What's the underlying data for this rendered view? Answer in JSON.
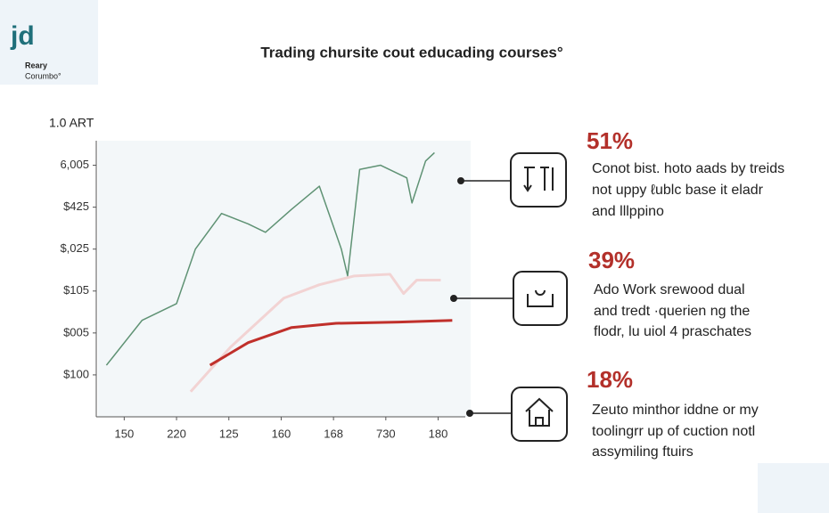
{
  "logo": {
    "mark": "jd",
    "name": "Reary",
    "tagline": "Corumbo°"
  },
  "chart_data": {
    "type": "line",
    "title": "Trading chursite cout educading courses°",
    "y_label": "1.0 ART",
    "xlim": [
      -0.5,
      6.4
    ],
    "xticks": [
      {
        "value": 0,
        "label": "150"
      },
      {
        "value": 1,
        "label": "220"
      },
      {
        "value": 2,
        "label": "125"
      },
      {
        "value": 3,
        "label": "160"
      },
      {
        "value": 4,
        "label": "168"
      },
      {
        "value": 5,
        "label": "730"
      },
      {
        "value": 6,
        "label": "180"
      }
    ],
    "ylim": [
      0,
      6.5
    ],
    "yticks": [
      {
        "value": 1,
        "label": "$100"
      },
      {
        "value": 2,
        "label": "$005"
      },
      {
        "value": 3,
        "label": "$105"
      },
      {
        "value": 4,
        "label": "$,025"
      },
      {
        "value": 5,
        "label": "$425"
      },
      {
        "value": 6,
        "label": "6,005"
      }
    ],
    "series": [
      {
        "color": "#5f9274",
        "x": [
          -0.34,
          0.34,
          1.0,
          1.36,
          1.86,
          2.37,
          2.7,
          3.2,
          3.73,
          4.15,
          4.27,
          4.5,
          4.9,
          5.4,
          5.5,
          5.76,
          5.93
        ],
        "values": [
          1.23,
          2.3,
          2.7,
          4.0,
          4.85,
          4.6,
          4.4,
          4.95,
          5.5,
          4.0,
          3.36,
          5.9,
          6.0,
          5.7,
          5.1,
          6.1,
          6.3
        ]
      },
      {
        "color": "#f2d3d3",
        "x": [
          1.27,
          2.03,
          3.05,
          3.73,
          4.4,
          5.08,
          5.34,
          5.59,
          6.05
        ],
        "values": [
          0.6,
          1.66,
          2.83,
          3.15,
          3.36,
          3.4,
          2.94,
          3.26,
          3.26
        ]
      },
      {
        "color": "#c0302b",
        "x": [
          1.64,
          2.37,
          3.2,
          4.05,
          5.25,
          6.27
        ],
        "values": [
          1.23,
          1.77,
          2.13,
          2.23,
          2.26,
          2.3
        ]
      }
    ]
  },
  "callouts": [
    {
      "percent": "51%",
      "lines": [
        "Conot bist. hoto aads by treids",
        "not uppy ℓublc base it eladr",
        "and lllppino"
      ]
    },
    {
      "percent": "39%",
      "lines": [
        "Ado Work srewood dual",
        "and tredt ·querien ng the",
        "flodr, lu uiol 4 praschates"
      ]
    },
    {
      "percent": "18%",
      "lines": [
        "Zeuto minthor iddne or my",
        "toolingrr up of cuction notl",
        "assymiling ftuirs"
      ]
    }
  ]
}
